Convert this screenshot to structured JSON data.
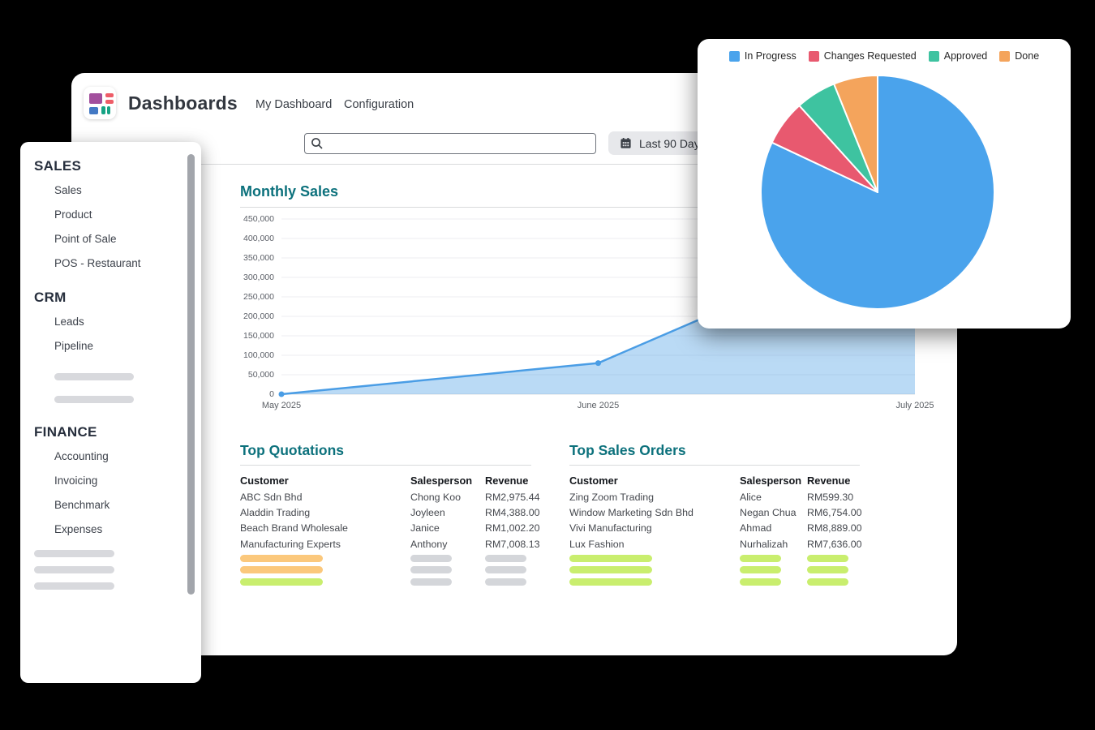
{
  "app": {
    "title": "Dashboards",
    "nav": [
      "My Dashboard",
      "Configuration"
    ],
    "icon_colors": {
      "purple": "#a24f9d",
      "pink": "#ee5d68",
      "blue": "#4379c4",
      "green": "#16a385"
    }
  },
  "search": {
    "value": "",
    "placeholder": ""
  },
  "filter": {
    "label": "Last 90 Days"
  },
  "sidebar": {
    "placeholder_color": "#d8d9dd",
    "sections": [
      {
        "title": "SALES",
        "items": [
          "Sales",
          "Product",
          "Point of Sale",
          "POS - Restaurant"
        ],
        "placeholder_bars": 0,
        "placeholder_indent": true
      },
      {
        "title": "CRM",
        "items": [
          "Leads",
          "Pipeline"
        ],
        "placeholder_bars": 2,
        "placeholder_indent": true
      },
      {
        "title": "FINANCE",
        "items": [
          "Accounting",
          "Invoicing",
          "Benchmark",
          "Expenses"
        ],
        "placeholder_bars": 3,
        "placeholder_indent": false
      }
    ]
  },
  "chart_data": [
    {
      "type": "area",
      "title": "Monthly Sales",
      "x": [
        "May 2025",
        "June 2025",
        "July 2025"
      ],
      "values": [
        0,
        80000,
        430000
      ],
      "xlabel": "",
      "ylabel": "",
      "ylim": [
        0,
        450000
      ],
      "ytick_step": 50000,
      "grid": true,
      "legend_position": "none",
      "line_color": "#4a9de5",
      "fill_color": "rgba(74,157,229,0.38)"
    },
    {
      "type": "pie",
      "title": "",
      "labels": [
        "In Progress",
        "Changes Requested",
        "Approved",
        "Done"
      ],
      "values": [
        82,
        6.3,
        5.6,
        6.1
      ],
      "unit": "percent",
      "colors": [
        "#4aa3ec",
        "#e8596f",
        "#3ec3a0",
        "#f4a45c"
      ],
      "legend_position": "top"
    }
  ],
  "tables": {
    "quotations": {
      "title": "Top Quotations",
      "columns": [
        "Customer",
        "Salesperson",
        "Revenue"
      ],
      "rows": [
        [
          "ABC Sdn Bhd",
          "Chong Koo",
          "RM2,975.44"
        ],
        [
          "Aladdin Trading",
          "Joyleen",
          "RM4,388.00"
        ],
        [
          "Beach Brand Wholesale",
          "Janice",
          "RM1,002.20"
        ],
        [
          "Manufacturing Experts",
          "Anthony",
          "RM7,008.13"
        ]
      ],
      "skeleton_rows": [
        [
          "#fbc87c",
          "#d4d6da",
          "#d4d6da"
        ],
        [
          "#fbc87c",
          "#d4d6da",
          "#d4d6da"
        ],
        [
          "#c9ee6e",
          "#d4d6da",
          "#d4d6da"
        ]
      ]
    },
    "sales_orders": {
      "title": "Top Sales Orders",
      "columns": [
        "Customer",
        "Salesperson",
        "Revenue"
      ],
      "rows": [
        [
          "Zing Zoom Trading",
          "Alice",
          "RM599.30"
        ],
        [
          "Window Marketing Sdn Bhd",
          "Negan Chua",
          "RM6,754.00"
        ],
        [
          "Vivi Manufacturing",
          "Ahmad",
          "RM8,889.00"
        ],
        [
          "Lux Fashion",
          "Nurhalizah",
          "RM7,636.00"
        ]
      ],
      "skeleton_rows": [
        [
          "#c9ee6e",
          "#c9ee6e",
          "#c9ee6e"
        ],
        [
          "#c9ee6e",
          "#c9ee6e",
          "#c9ee6e"
        ],
        [
          "#c9ee6e",
          "#c9ee6e",
          "#c9ee6e"
        ]
      ]
    }
  },
  "colors": {
    "section_title_teal": "#0c717c",
    "accent_blue": "#4a9de5"
  }
}
